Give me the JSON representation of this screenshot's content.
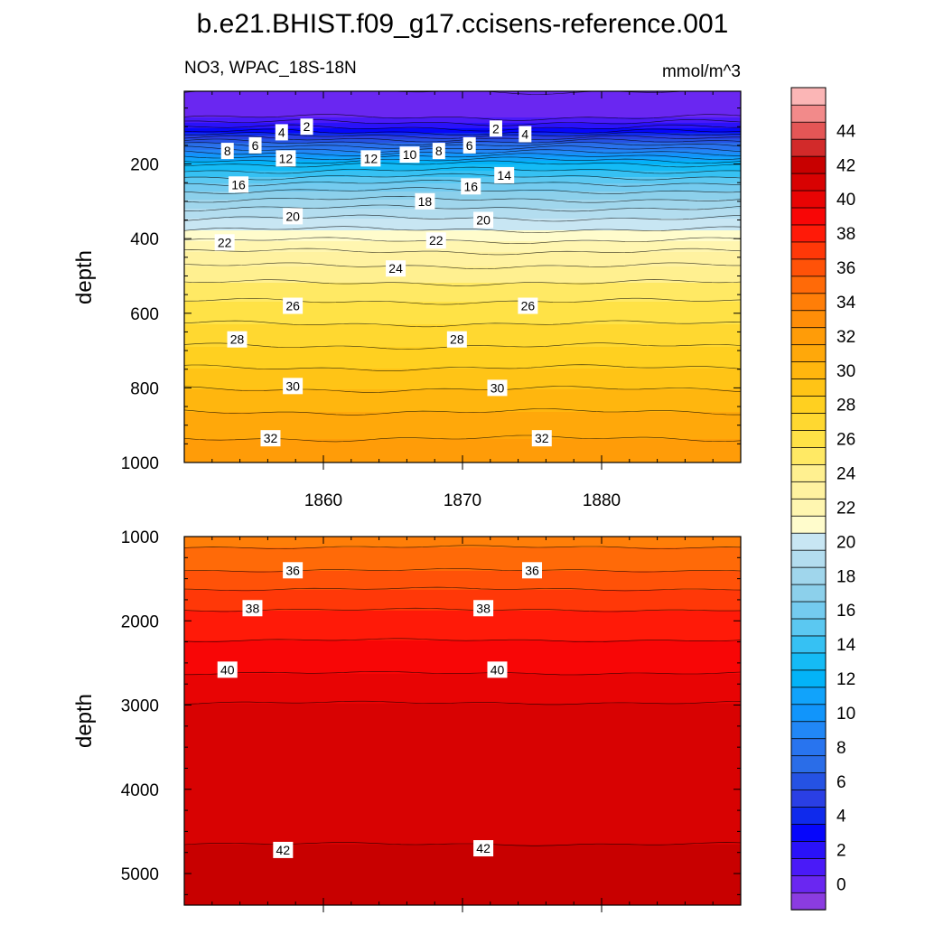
{
  "chart_data": [
    {
      "panel": "upper",
      "type": "contour",
      "title": "b.e21.BHIST.f09_g17.ccisens-reference.001",
      "left_subtitle": "NO3, WPAC_18S-18N",
      "right_subtitle": "mmol/m^3",
      "xlabel": "",
      "ylabel": "depth",
      "xlim": [
        1850,
        1890
      ],
      "ylim": [
        1000,
        5
      ],
      "y_reversed": true,
      "xticks": [
        1860,
        1870,
        1880
      ],
      "xtick_labels": [
        "1860",
        "1870",
        "1880"
      ],
      "yticks": [
        200,
        400,
        600,
        800,
        1000
      ],
      "ytick_labels": [
        "200",
        "400",
        "600",
        "800",
        "1000"
      ],
      "contour_profile": {
        "depth": [
          5,
          75,
          110,
          150,
          200,
          260,
          330,
          400,
          410,
          450,
          550,
          700,
          850,
          1000
        ],
        "value": [
          0,
          1,
          3.5,
          8,
          13,
          16.5,
          19.5,
          21.8,
          22.2,
          23.5,
          25.7,
          28.2,
          30.8,
          32.9
        ]
      },
      "contour_labels": [
        {
          "text": "2",
          "x": 1858.8,
          "depth": 100
        },
        {
          "text": "4",
          "x": 1857.0,
          "depth": 115
        },
        {
          "text": "6",
          "x": 1855.1,
          "depth": 150
        },
        {
          "text": "8",
          "x": 1853.1,
          "depth": 165
        },
        {
          "text": "12",
          "x": 1857.3,
          "depth": 185
        },
        {
          "text": "12",
          "x": 1863.4,
          "depth": 185
        },
        {
          "text": "10",
          "x": 1866.2,
          "depth": 175
        },
        {
          "text": "8",
          "x": 1868.3,
          "depth": 165
        },
        {
          "text": "6",
          "x": 1870.5,
          "depth": 150
        },
        {
          "text": "2",
          "x": 1872.4,
          "depth": 105
        },
        {
          "text": "4",
          "x": 1874.5,
          "depth": 120
        },
        {
          "text": "14",
          "x": 1873.0,
          "depth": 230
        },
        {
          "text": "16",
          "x": 1853.9,
          "depth": 255
        },
        {
          "text": "16",
          "x": 1870.6,
          "depth": 260
        },
        {
          "text": "18",
          "x": 1867.3,
          "depth": 300
        },
        {
          "text": "20",
          "x": 1857.8,
          "depth": 340
        },
        {
          "text": "20",
          "x": 1871.5,
          "depth": 350
        },
        {
          "text": "22",
          "x": 1852.9,
          "depth": 410
        },
        {
          "text": "22",
          "x": 1868.1,
          "depth": 405
        },
        {
          "text": "24",
          "x": 1865.2,
          "depth": 480
        },
        {
          "text": "26",
          "x": 1857.8,
          "depth": 580
        },
        {
          "text": "26",
          "x": 1874.7,
          "depth": 580
        },
        {
          "text": "28",
          "x": 1853.8,
          "depth": 670
        },
        {
          "text": "28",
          "x": 1869.6,
          "depth": 670
        },
        {
          "text": "30",
          "x": 1857.8,
          "depth": 795
        },
        {
          "text": "30",
          "x": 1872.5,
          "depth": 800
        },
        {
          "text": "32",
          "x": 1856.2,
          "depth": 935
        },
        {
          "text": "32",
          "x": 1875.7,
          "depth": 935
        }
      ]
    },
    {
      "panel": "lower",
      "type": "contour",
      "xlabel": "",
      "ylabel": "depth",
      "xlim": [
        1850,
        1890
      ],
      "ylim": [
        5375,
        1000
      ],
      "y_reversed": true,
      "xticks": [
        1860,
        1870,
        1880
      ],
      "yticks": [
        1000,
        2000,
        3000,
        4000,
        5000
      ],
      "ytick_labels": [
        "1000",
        "2000",
        "3000",
        "4000",
        "5000"
      ],
      "contour_profile": {
        "depth": [
          1000,
          1200,
          1400,
          1800,
          2150,
          2550,
          3150,
          3200,
          4600,
          4700,
          5375
        ],
        "value": [
          34.5,
          35.3,
          36,
          37.8,
          38.8,
          39.8,
          41.5,
          41.6,
          41.9,
          42.1,
          42.3
        ]
      },
      "contour_labels": [
        {
          "text": "36",
          "x": 1857.8,
          "depth": 1400
        },
        {
          "text": "36",
          "x": 1875.0,
          "depth": 1400
        },
        {
          "text": "38",
          "x": 1854.9,
          "depth": 1850
        },
        {
          "text": "38",
          "x": 1871.5,
          "depth": 1850
        },
        {
          "text": "40",
          "x": 1853.1,
          "depth": 2580
        },
        {
          "text": "40",
          "x": 1872.5,
          "depth": 2580
        },
        {
          "text": "42",
          "x": 1857.1,
          "depth": 4720
        },
        {
          "text": "42",
          "x": 1871.5,
          "depth": 4700
        }
      ]
    },
    {
      "panel": "colorbar",
      "type": "colorbar",
      "levels": [
        -1,
        0,
        1,
        2,
        3,
        4,
        5,
        6,
        7,
        8,
        9,
        10,
        11,
        12,
        13,
        14,
        15,
        16,
        17,
        18,
        19,
        20,
        21,
        22,
        23,
        24,
        25,
        26,
        27,
        28,
        29,
        30,
        31,
        32,
        33,
        34,
        35,
        36,
        37,
        38,
        39,
        40,
        41,
        42,
        43,
        44,
        45,
        46
      ],
      "labels": [
        "0",
        "2",
        "4",
        "6",
        "8",
        "10",
        "12",
        "14",
        "16",
        "18",
        "20",
        "22",
        "24",
        "26",
        "28",
        "30",
        "32",
        "34",
        "36",
        "38",
        "40",
        "42",
        "44"
      ],
      "colors": [
        "#8b3ce0",
        "#6a27f1",
        "#4a1af8",
        "#2a12f9",
        "#0606fb",
        "#0f2aec",
        "#2a3fe4",
        "#2552e3",
        "#2a6de8",
        "#2874ef",
        "#2187f6",
        "#1195fb",
        "#11a3fb",
        "#03b3f8",
        "#15bbf5",
        "#36c1f3",
        "#5bc8f1",
        "#74cbef",
        "#8cd0eb",
        "#a0d6ec",
        "#b3ddef",
        "#c8e6f3",
        "#fffccc",
        "#fff6b0",
        "#fff2a0",
        "#fff090",
        "#ffe964",
        "#ffe246",
        "#ffd830",
        "#ffd020",
        "#ffc416",
        "#ffb60e",
        "#ffa80a",
        "#ff9c08",
        "#ff8e08",
        "#ff7e08",
        "#ff6a08",
        "#ff5208",
        "#ff3808",
        "#ff1a08",
        "#f80606",
        "#e80404",
        "#d80202",
        "#c80000",
        "#d22a2a",
        "#e45656",
        "#f28a8a",
        "#fbb6b6"
      ]
    }
  ]
}
